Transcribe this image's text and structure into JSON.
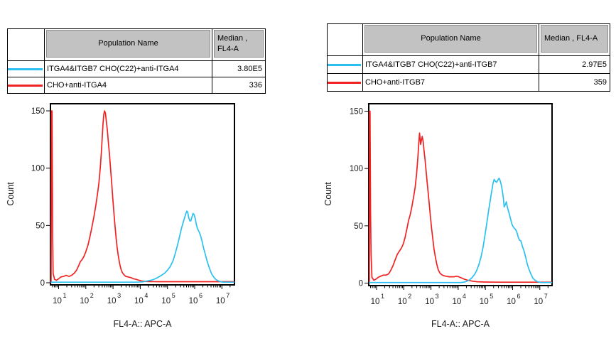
{
  "colors": {
    "cyan": "#2BC0F0",
    "red": "#F12222",
    "header_gray": "#c2c2c2",
    "axis": "#000000",
    "text": "#1a1a1a"
  },
  "tables": [
    {
      "header": {
        "population": "Population Name",
        "median_line1": "Median ,",
        "median_line2": "FL4-A"
      },
      "rows": [
        {
          "swatch": "cyan",
          "name": "ITGA4&ITGB7 CHO(C22)+anti-ITGA4",
          "median": "3.80E5"
        },
        {
          "swatch": "red",
          "name": "CHO+anti-ITGA4",
          "median": "336"
        }
      ]
    },
    {
      "header": {
        "population": "Population Name",
        "median_line1": "Median , FL4-A",
        "median_line2": ""
      },
      "rows": [
        {
          "swatch": "cyan",
          "name": "ITGA4&ITGB7 CHO(C22)+anti-ITGB7",
          "median": "2.97E5"
        },
        {
          "swatch": "red",
          "name": "CHO+anti-ITGB7",
          "median": "359"
        }
      ]
    }
  ],
  "chart_data": [
    {
      "type": "line",
      "subtype": "flow-cytometry-histogram",
      "xlabel": "FL4-A:: APC-A",
      "ylabel": "Count",
      "x_scale": "log10",
      "x_base_label": "10",
      "xticks_exponents": [
        1,
        2,
        3,
        4,
        5,
        6,
        7
      ],
      "xlim_log": [
        0.72,
        7.46
      ],
      "ylim": [
        0,
        155
      ],
      "yticks": [
        0,
        50,
        100,
        150
      ],
      "grid": false,
      "legend_position": "table-above",
      "series": [
        {
          "name": "CHO+anti-ITGA4",
          "color_key": "red",
          "median": "336",
          "points_logx_count": [
            [
              0.72,
              0
            ],
            [
              0.74,
              150
            ],
            [
              0.76,
              150
            ],
            [
              0.78,
              40
            ],
            [
              0.8,
              8
            ],
            [
              0.85,
              3
            ],
            [
              0.92,
              2.2
            ],
            [
              1.0,
              3.5
            ],
            [
              1.08,
              5
            ],
            [
              1.18,
              5.5
            ],
            [
              1.28,
              6.5
            ],
            [
              1.38,
              5.5
            ],
            [
              1.48,
              6.5
            ],
            [
              1.58,
              8.5
            ],
            [
              1.66,
              11
            ],
            [
              1.74,
              15
            ],
            [
              1.8,
              18.5
            ],
            [
              1.86,
              20
            ],
            [
              1.93,
              23
            ],
            [
              2.0,
              27
            ],
            [
              2.08,
              33
            ],
            [
              2.15,
              40
            ],
            [
              2.22,
              48
            ],
            [
              2.3,
              58
            ],
            [
              2.37,
              68
            ],
            [
              2.43,
              78
            ],
            [
              2.48,
              87
            ],
            [
              2.53,
              100
            ],
            [
              2.57,
              113
            ],
            [
              2.6,
              126
            ],
            [
              2.63,
              138
            ],
            [
              2.66,
              147
            ],
            [
              2.69,
              150
            ],
            [
              2.72,
              148
            ],
            [
              2.75,
              142
            ],
            [
              2.79,
              133
            ],
            [
              2.83,
              122
            ],
            [
              2.87,
              112
            ],
            [
              2.91,
              99
            ],
            [
              2.95,
              87
            ],
            [
              2.99,
              74
            ],
            [
              3.03,
              62
            ],
            [
              3.07,
              50
            ],
            [
              3.11,
              40
            ],
            [
              3.15,
              31
            ],
            [
              3.19,
              24
            ],
            [
              3.24,
              17
            ],
            [
              3.29,
              12
            ],
            [
              3.34,
              9
            ],
            [
              3.4,
              7
            ],
            [
              3.47,
              5.5
            ],
            [
              3.56,
              5
            ],
            [
              3.65,
              4.5
            ],
            [
              3.75,
              3.5
            ],
            [
              3.85,
              3
            ],
            [
              3.95,
              2.2
            ],
            [
              4.05,
              1.5
            ],
            [
              4.2,
              1.2
            ],
            [
              4.4,
              1
            ],
            [
              4.8,
              0.9
            ],
            [
              7.44,
              0.9
            ]
          ]
        },
        {
          "name": "ITGA4&ITGB7 CHO(C22)+anti-ITGA4",
          "color_key": "cyan",
          "median": "3.80E5",
          "points_logx_count": [
            [
              0.72,
              0.5
            ],
            [
              3.9,
              0.5
            ],
            [
              4.1,
              0.8
            ],
            [
              4.25,
              1.5
            ],
            [
              4.45,
              2.5
            ],
            [
              4.6,
              4
            ],
            [
              4.75,
              6
            ],
            [
              4.9,
              8.5
            ],
            [
              5.0,
              11
            ],
            [
              5.1,
              14
            ],
            [
              5.2,
              19
            ],
            [
              5.28,
              25
            ],
            [
              5.36,
              32
            ],
            [
              5.44,
              40
            ],
            [
              5.51,
              47
            ],
            [
              5.57,
              52
            ],
            [
              5.62,
              56
            ],
            [
              5.67,
              60
            ],
            [
              5.71,
              62.5
            ],
            [
              5.74,
              62
            ],
            [
              5.78,
              57
            ],
            [
              5.82,
              54
            ],
            [
              5.86,
              54
            ],
            [
              5.9,
              57.5
            ],
            [
              5.94,
              60.5
            ],
            [
              5.98,
              59.5
            ],
            [
              6.02,
              56
            ],
            [
              6.06,
              51
            ],
            [
              6.1,
              47.5
            ],
            [
              6.14,
              45.5
            ],
            [
              6.18,
              43.5
            ],
            [
              6.23,
              40
            ],
            [
              6.28,
              35.5
            ],
            [
              6.33,
              30
            ],
            [
              6.39,
              25
            ],
            [
              6.45,
              19.5
            ],
            [
              6.51,
              15
            ],
            [
              6.57,
              11
            ],
            [
              6.63,
              7.5
            ],
            [
              6.7,
              5
            ],
            [
              6.77,
              3
            ],
            [
              6.85,
              1.8
            ],
            [
              6.94,
              1
            ],
            [
              7.05,
              0.5
            ],
            [
              7.44,
              0.5
            ]
          ]
        }
      ]
    },
    {
      "type": "line",
      "subtype": "flow-cytometry-histogram",
      "xlabel": "FL4-A:: APC-A",
      "ylabel": "Count",
      "x_scale": "log10",
      "x_base_label": "10",
      "xticks_exponents": [
        1,
        2,
        3,
        4,
        5,
        6,
        7
      ],
      "xlim_log": [
        0.72,
        7.45
      ],
      "ylim": [
        0,
        155
      ],
      "yticks": [
        0,
        50,
        100,
        150
      ],
      "grid": false,
      "legend_position": "table-above",
      "series": [
        {
          "name": "CHO+anti-ITGB7",
          "color_key": "red",
          "median": "359",
          "points_logx_count": [
            [
              0.72,
              0
            ],
            [
              0.74,
              150
            ],
            [
              0.76,
              150
            ],
            [
              0.78,
              60
            ],
            [
              0.8,
              25
            ],
            [
              0.83,
              5
            ],
            [
              0.9,
              2.5
            ],
            [
              0.98,
              3.5
            ],
            [
              1.06,
              5
            ],
            [
              1.15,
              6
            ],
            [
              1.25,
              7
            ],
            [
              1.35,
              7
            ],
            [
              1.44,
              8
            ],
            [
              1.52,
              11
            ],
            [
              1.6,
              15
            ],
            [
              1.68,
              20
            ],
            [
              1.76,
              25
            ],
            [
              1.84,
              28
            ],
            [
              1.91,
              30.5
            ],
            [
              1.98,
              34
            ],
            [
              2.05,
              40
            ],
            [
              2.12,
              48
            ],
            [
              2.18,
              55
            ],
            [
              2.24,
              60
            ],
            [
              2.3,
              67
            ],
            [
              2.36,
              75
            ],
            [
              2.42,
              84
            ],
            [
              2.47,
              95
            ],
            [
              2.52,
              110
            ],
            [
              2.55,
              122
            ],
            [
              2.58,
              131
            ],
            [
              2.6,
              126
            ],
            [
              2.62,
              121
            ],
            [
              2.65,
              125
            ],
            [
              2.68,
              128
            ],
            [
              2.71,
              124
            ],
            [
              2.74,
              117
            ],
            [
              2.78,
              108
            ],
            [
              2.82,
              98
            ],
            [
              2.86,
              88
            ],
            [
              2.9,
              78
            ],
            [
              2.94,
              68
            ],
            [
              2.98,
              58
            ],
            [
              3.02,
              48
            ],
            [
              3.07,
              38
            ],
            [
              3.11,
              30
            ],
            [
              3.16,
              23
            ],
            [
              3.21,
              17
            ],
            [
              3.26,
              12
            ],
            [
              3.32,
              9
            ],
            [
              3.38,
              7.5
            ],
            [
              3.46,
              6.5
            ],
            [
              3.55,
              6
            ],
            [
              3.65,
              5.5
            ],
            [
              3.75,
              5.5
            ],
            [
              3.85,
              5.5
            ],
            [
              3.93,
              6
            ],
            [
              4.02,
              5.5
            ],
            [
              4.12,
              4.5
            ],
            [
              4.22,
              3.5
            ],
            [
              4.35,
              2.5
            ],
            [
              4.5,
              1.8
            ],
            [
              4.7,
              1.2
            ],
            [
              5.0,
              0.9
            ],
            [
              5.4,
              0.8
            ],
            [
              7.43,
              0.8
            ]
          ]
        },
        {
          "name": "ITGA4&ITGB7 CHO(C22)+anti-ITGB7",
          "color_key": "cyan",
          "median": "2.97E5",
          "points_logx_count": [
            [
              0.72,
              0.5
            ],
            [
              4.1,
              0.5
            ],
            [
              4.25,
              1
            ],
            [
              4.4,
              2.5
            ],
            [
              4.5,
              4.5
            ],
            [
              4.6,
              7.5
            ],
            [
              4.68,
              11
            ],
            [
              4.76,
              16
            ],
            [
              4.84,
              23
            ],
            [
              4.91,
              31
            ],
            [
              4.98,
              41
            ],
            [
              5.05,
              52
            ],
            [
              5.11,
              62
            ],
            [
              5.17,
              71
            ],
            [
              5.23,
              80
            ],
            [
              5.28,
              87
            ],
            [
              5.32,
              90.5
            ],
            [
              5.36,
              89
            ],
            [
              5.41,
              88
            ],
            [
              5.46,
              90
            ],
            [
              5.5,
              91.5
            ],
            [
              5.54,
              89.5
            ],
            [
              5.58,
              86
            ],
            [
              5.62,
              81
            ],
            [
              5.66,
              74
            ],
            [
              5.69,
              66.5
            ],
            [
              5.73,
              68.5
            ],
            [
              5.77,
              71
            ],
            [
              5.81,
              66
            ],
            [
              5.86,
              62
            ],
            [
              5.92,
              56.5
            ],
            [
              5.98,
              51
            ],
            [
              6.04,
              48.5
            ],
            [
              6.1,
              47
            ],
            [
              6.15,
              45
            ],
            [
              6.2,
              40.5
            ],
            [
              6.25,
              37.5
            ],
            [
              6.3,
              37
            ],
            [
              6.36,
              32
            ],
            [
              6.42,
              28
            ],
            [
              6.48,
              22.5
            ],
            [
              6.54,
              16.5
            ],
            [
              6.6,
              12
            ],
            [
              6.67,
              8
            ],
            [
              6.74,
              4.5
            ],
            [
              6.82,
              2.5
            ],
            [
              6.92,
              1.2
            ],
            [
              7.04,
              0.5
            ],
            [
              7.43,
              0.5
            ]
          ]
        }
      ]
    }
  ]
}
